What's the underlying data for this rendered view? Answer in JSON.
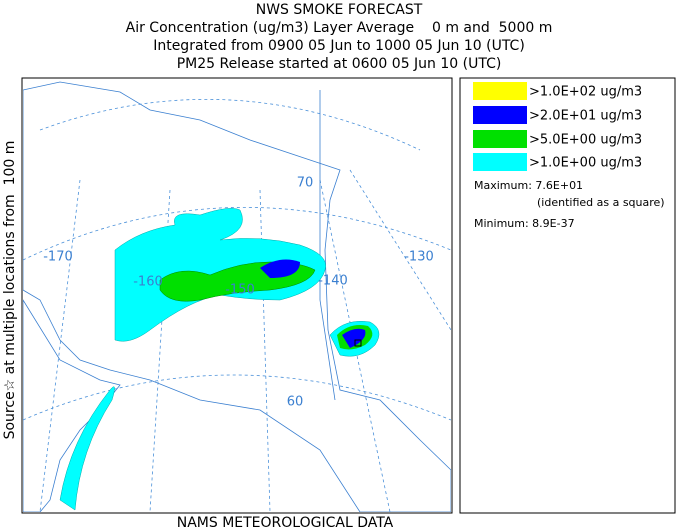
{
  "header": {
    "title": "NWS SMOKE FORECAST",
    "lines": [
      "Air Concentration (ug/m3) Layer Average    0 m and  5000 m",
      "Integrated from 0900 05 Jun to 1000 05 Jun 10 (UTC)",
      "PM25 Release started at 0600 05 Jun 10 (UTC)"
    ]
  },
  "side_label": "Source☆ at multiple locations from  100 m",
  "footer": "NAMS METEOROLOGICAL DATA",
  "legend": {
    "items": [
      {
        "label": ">1.0E+02 ug/m3",
        "color": "#ffff00"
      },
      {
        "label": ">2.0E+01 ug/m3",
        "color": "#0000ff"
      },
      {
        "label": ">5.0E+00 ug/m3",
        "color": "#00e000"
      },
      {
        "label": ">1.0E+00 ug/m3",
        "color": "#00ffff"
      }
    ],
    "maximum": "Maximum: 7.6E+01",
    "maximum_note": "(identified as a square)",
    "minimum": "Minimum: 8.9E-37"
  },
  "map_labels": [
    "-170",
    "-160",
    "-150",
    "-140",
    "-130",
    "70",
    "60"
  ]
}
